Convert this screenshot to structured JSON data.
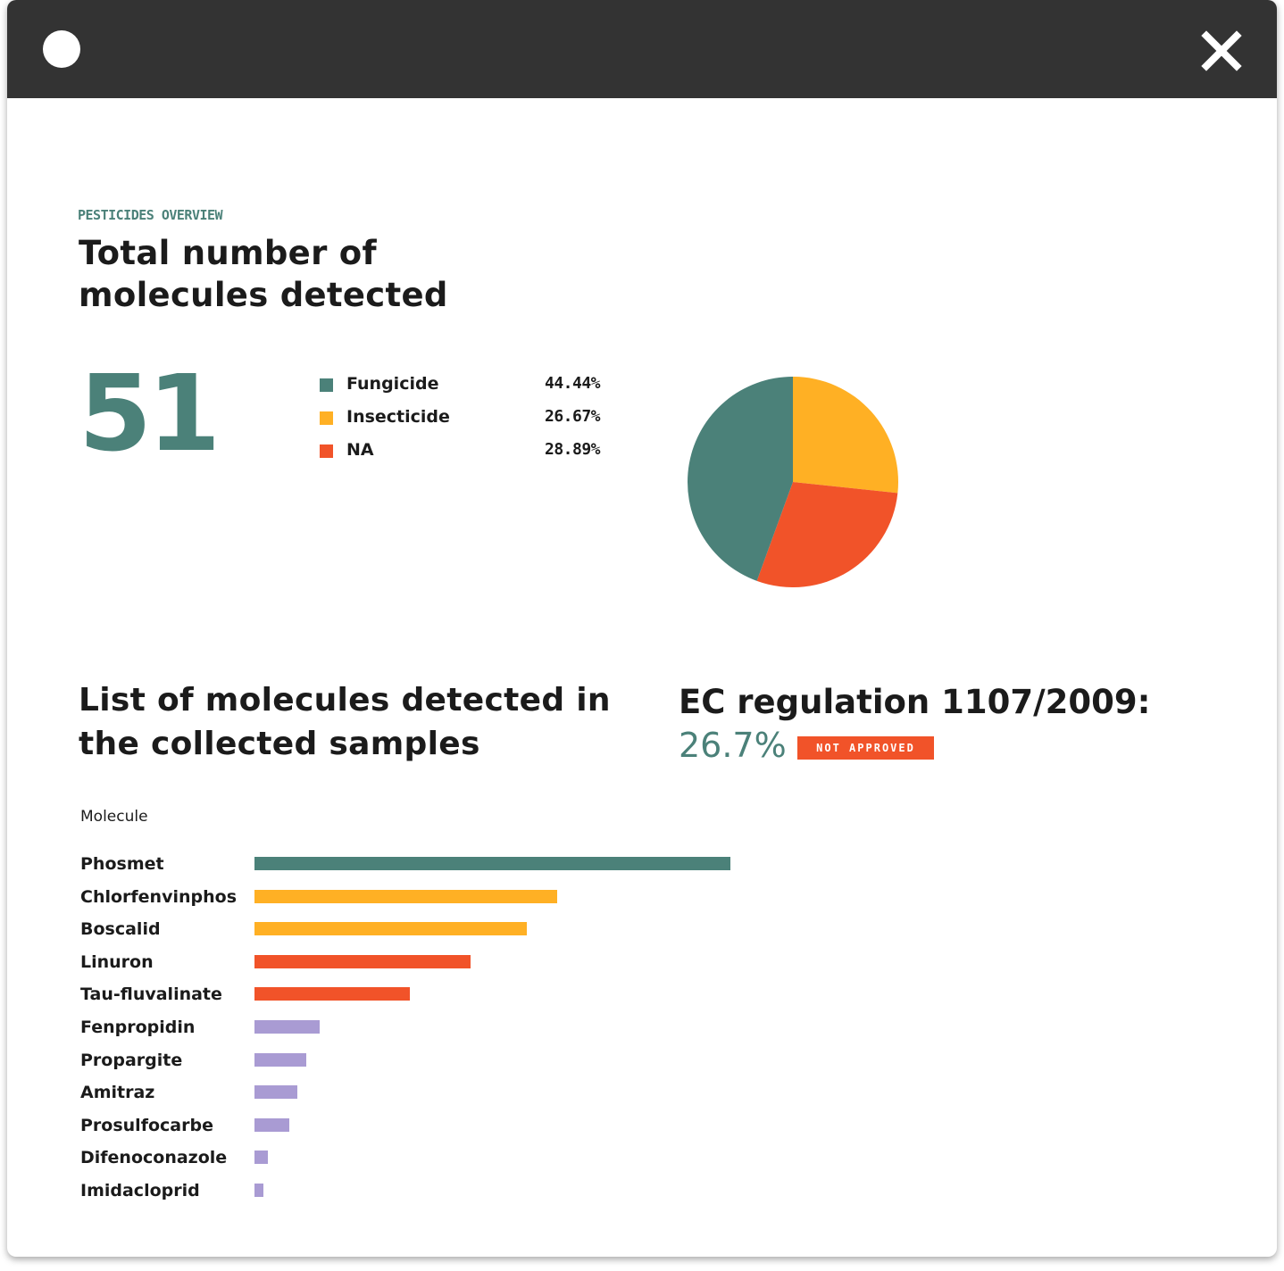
{
  "window": {
    "dot_icon": "circle-icon",
    "close_icon": "close-icon"
  },
  "header": {
    "eyebrow": "PESTICIDES OVERVIEW",
    "title": "Total number of molecules detected"
  },
  "summary": {
    "total_count": "51"
  },
  "colors": {
    "fungicide": "#4b8179",
    "insecticide": "#ffb024",
    "na": "#f15329",
    "other": "#a99bd3"
  },
  "list_section": {
    "title": "List of molecules detected in the collected samples",
    "axis_title": "Molecule"
  },
  "regulation": {
    "title": "EC regulation 1107/2009:",
    "value": "26.7%",
    "badge": "NOT APPROVED"
  },
  "chart_data": [
    {
      "type": "pie",
      "legend_placement": "left",
      "slices": [
        {
          "label": "Fungicide",
          "value": 44.44,
          "display": "44.44%",
          "color": "#4b8179"
        },
        {
          "label": "Insecticide",
          "value": 26.67,
          "display": "26.67%",
          "color": "#ffb024"
        },
        {
          "label": "NA",
          "value": 28.89,
          "display": "28.89%",
          "color": "#f15329"
        }
      ]
    },
    {
      "type": "bar",
      "orientation": "horizontal",
      "grid": false,
      "xlim": [
        0,
        55
      ],
      "categories": [
        "Phosmet",
        "Chlorfenvinphos",
        "Boscalid",
        "Linuron",
        "Tau-fluvalinate",
        "Fenpropidin",
        "Propargite",
        "Amitraz",
        "Prosulfocarbe",
        "Difenoconazole",
        "Imidacloprid"
      ],
      "values": [
        55,
        35,
        31.5,
        25,
        18,
        7.5,
        6,
        5,
        4,
        1.5,
        1
      ],
      "colors": [
        "#4b8179",
        "#ffb024",
        "#ffb024",
        "#f15329",
        "#f15329",
        "#a99bd3",
        "#a99bd3",
        "#a99bd3",
        "#a99bd3",
        "#a99bd3",
        "#a99bd3"
      ]
    }
  ]
}
